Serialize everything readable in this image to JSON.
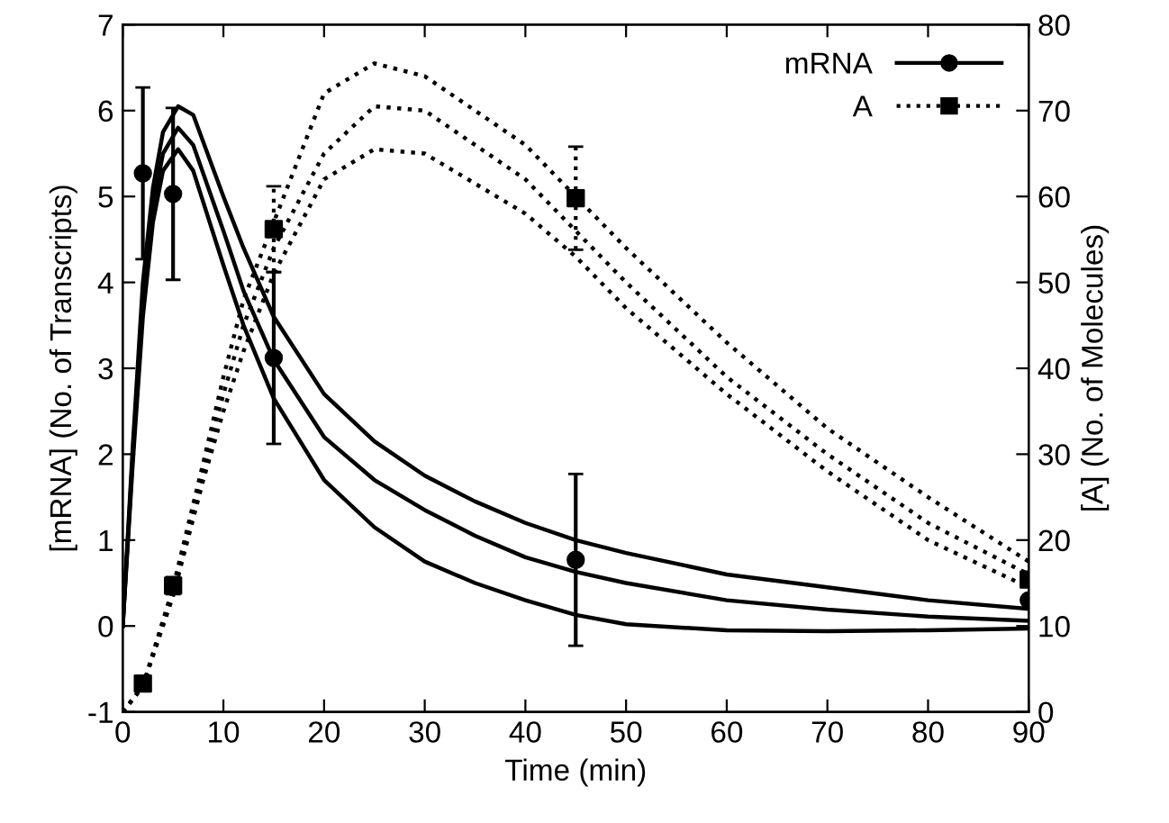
{
  "chart_data": {
    "type": "line",
    "xlabel": "Time (min)",
    "ylabel": "[mRNA] (No. of Transcripts)",
    "y2label": "[A] (No. of Molecules)",
    "xlim": [
      0,
      90
    ],
    "xticks": [
      0,
      10,
      20,
      30,
      40,
      50,
      60,
      70,
      80,
      90
    ],
    "ylim": [
      -1,
      7
    ],
    "yticks": [
      -1,
      0,
      1,
      2,
      3,
      4,
      5,
      6,
      7
    ],
    "y2lim": [
      0,
      80
    ],
    "y2ticks": [
      0,
      10,
      20,
      30,
      40,
      50,
      60,
      70,
      80
    ],
    "grid": false,
    "legend": "top right",
    "series": [
      {
        "color": "#000000",
        "line_style": "solid",
        "x": [
          0,
          1,
          2,
          3,
          4,
          5.5,
          7,
          10,
          12,
          15,
          20,
          25,
          30,
          35,
          40,
          45,
          50,
          60,
          70,
          80,
          90
        ],
        "values": [
          0,
          2.0,
          3.8,
          4.9,
          5.5,
          5.8,
          5.6,
          4.6,
          3.9,
          3.1,
          2.2,
          1.7,
          1.35,
          1.05,
          0.8,
          0.63,
          0.5,
          0.3,
          0.19,
          0.11,
          0.06
        ]
      },
      {
        "color": "#000000",
        "line_style": "solid",
        "x": [
          0,
          1,
          2,
          3,
          4,
          5.5,
          7,
          10,
          12,
          15,
          20,
          25,
          30,
          35,
          40,
          45,
          50,
          60,
          70,
          80,
          90
        ],
        "values": [
          0,
          2.1,
          4.0,
          5.1,
          5.75,
          6.05,
          5.95,
          5.0,
          4.4,
          3.6,
          2.7,
          2.15,
          1.75,
          1.45,
          1.2,
          1.0,
          0.85,
          0.6,
          0.45,
          0.3,
          0.2
        ]
      },
      {
        "color": "#000000",
        "line_style": "solid",
        "x": [
          0,
          1,
          2,
          3,
          4,
          5.5,
          7,
          10,
          12,
          15,
          20,
          25,
          30,
          35,
          40,
          45,
          50,
          60,
          70,
          80,
          90
        ],
        "values": [
          0,
          1.9,
          3.6,
          4.7,
          5.3,
          5.55,
          5.3,
          4.2,
          3.5,
          2.65,
          1.7,
          1.15,
          0.75,
          0.5,
          0.3,
          0.13,
          0.02,
          -0.05,
          -0.06,
          -0.05,
          -0.03
        ]
      },
      {
        "axis": "y2",
        "color": "#000000",
        "line_style": "dotted",
        "x": [
          0,
          2,
          5,
          8,
          10,
          12,
          15,
          20,
          25,
          30,
          40,
          45,
          50,
          60,
          70,
          80,
          90
        ],
        "values": [
          0,
          3,
          14,
          28,
          37,
          45,
          54,
          65,
          70.5,
          70,
          62,
          56,
          50,
          39,
          30,
          22,
          16
        ]
      },
      {
        "axis": "y2",
        "color": "#000000",
        "line_style": "dotted",
        "x": [
          0,
          2,
          5,
          8,
          10,
          12,
          15,
          20,
          25,
          30,
          40,
          45,
          50,
          60,
          70,
          80,
          90
        ],
        "values": [
          0,
          3,
          14.5,
          29,
          39,
          48,
          57,
          72,
          75.5,
          74,
          66,
          60,
          54,
          43,
          33,
          25,
          17.5
        ]
      },
      {
        "axis": "y2",
        "color": "#000000",
        "line_style": "dotted",
        "x": [
          0,
          2,
          5,
          8,
          10,
          12,
          15,
          20,
          25,
          30,
          40,
          45,
          50,
          60,
          70,
          80,
          90
        ],
        "values": [
          0,
          3,
          13.5,
          27,
          35,
          42,
          51,
          62,
          65.5,
          65,
          58,
          53,
          47,
          37,
          28,
          20,
          14.5
        ]
      },
      {
        "type": "scatter",
        "name": "mRNA",
        "color": "#000000",
        "line_style": "solid",
        "marker": "circle",
        "x": [
          2,
          5,
          15,
          45,
          90
        ],
        "values": [
          5.27,
          5.03,
          3.12,
          0.77,
          0.3
        ],
        "errors": [
          1,
          1,
          1,
          1,
          null
        ]
      },
      {
        "type": "scatter",
        "name": "A",
        "axis": "y2",
        "color": "#000000",
        "line_style": "dotted",
        "marker": "square",
        "x": [
          2,
          5,
          15,
          45,
          90
        ],
        "values": [
          3.3,
          14.7,
          56.2,
          59.8,
          15.4
        ],
        "errors": [
          null,
          1,
          5,
          6,
          null
        ]
      }
    ]
  }
}
